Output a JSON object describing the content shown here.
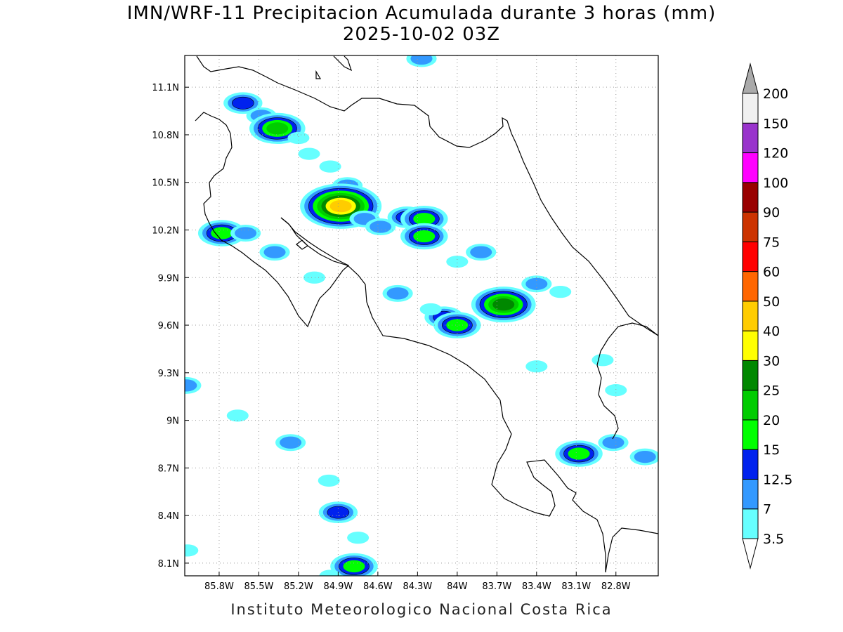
{
  "title": {
    "line1": "IMN/WRF-11 Precipitacion Acumulada durante 3 horas (mm)",
    "line2": "2025-10-02 03Z"
  },
  "footer": "Instituto Meteorologico Nacional Costa Rica",
  "map": {
    "lon_range": [
      -86.06,
      -82.48
    ],
    "lat_range": [
      8.02,
      11.3
    ],
    "x_ticks": [
      {
        "lon": -85.8,
        "label": "85.8W"
      },
      {
        "lon": -85.5,
        "label": "85.5W"
      },
      {
        "lon": -85.2,
        "label": "85.2W"
      },
      {
        "lon": -84.9,
        "label": "84.9W"
      },
      {
        "lon": -84.6,
        "label": "84.6W"
      },
      {
        "lon": -84.3,
        "label": "84.3W"
      },
      {
        "lon": -84.0,
        "label": "84W"
      },
      {
        "lon": -83.7,
        "label": "83.7W"
      },
      {
        "lon": -83.4,
        "label": "83.4W"
      },
      {
        "lon": -83.1,
        "label": "83.1W"
      },
      {
        "lon": -82.8,
        "label": "82.8W"
      }
    ],
    "y_ticks": [
      {
        "lat": 11.1,
        "label": "11.1N"
      },
      {
        "lat": 10.8,
        "label": "10.8N"
      },
      {
        "lat": 10.5,
        "label": "10.5N"
      },
      {
        "lat": 10.2,
        "label": "10.2N"
      },
      {
        "lat": 9.9,
        "label": "9.9N"
      },
      {
        "lat": 9.6,
        "label": "9.6N"
      },
      {
        "lat": 9.3,
        "label": "9.3N"
      },
      {
        "lat": 9.0,
        "label": "9N"
      },
      {
        "lat": 8.7,
        "label": "8.7N"
      },
      {
        "lat": 8.4,
        "label": "8.4N"
      },
      {
        "lat": 8.1,
        "label": "8.1N"
      }
    ],
    "grid": true
  },
  "colorbar": {
    "levels": [
      {
        "label": "3.5",
        "color": "#ffffff"
      },
      {
        "label": "7",
        "color": "#66ffff"
      },
      {
        "label": "12.5",
        "color": "#3399ff"
      },
      {
        "label": "15",
        "color": "#0022ee"
      },
      {
        "label": "20",
        "color": "#00ff00"
      },
      {
        "label": "25",
        "color": "#00cc00"
      },
      {
        "label": "30",
        "color": "#008800"
      },
      {
        "label": "40",
        "color": "#ffff00"
      },
      {
        "label": "50",
        "color": "#ffcc00"
      },
      {
        "label": "60",
        "color": "#ff6600"
      },
      {
        "label": "75",
        "color": "#ff0000"
      },
      {
        "label": "90",
        "color": "#cc3300"
      },
      {
        "label": "100",
        "color": "#990000"
      },
      {
        "label": "120",
        "color": "#ff00ff"
      },
      {
        "label": "150",
        "color": "#9933cc"
      },
      {
        "label": "200",
        "color": "#f0f0f0"
      }
    ],
    "band_colors": [
      "#66ffff",
      "#3399ff",
      "#0022ee",
      "#00ff00",
      "#00cc00",
      "#008800",
      "#ffff00",
      "#ffcc00",
      "#ff6600",
      "#ff0000",
      "#cc3300",
      "#990000",
      "#ff00ff",
      "#9933cc",
      "#f0f0f0"
    ],
    "upper_triangle_color": "#aaaaaa",
    "lower_triangle_color": "#ffffff"
  },
  "precip_cells": [
    {
      "lon": -85.62,
      "lat": 11.0,
      "level": 3
    },
    {
      "lon": -85.48,
      "lat": 10.92,
      "level": 2
    },
    {
      "lon": -85.36,
      "lat": 10.84,
      "level": 5
    },
    {
      "lon": -85.2,
      "lat": 10.78,
      "level": 1
    },
    {
      "lon": -85.12,
      "lat": 10.68,
      "level": 1
    },
    {
      "lon": -84.96,
      "lat": 10.6,
      "level": 1
    },
    {
      "lon": -84.83,
      "lat": 10.48,
      "level": 2
    },
    {
      "lon": -84.88,
      "lat": 10.35,
      "level": 8
    },
    {
      "lon": -84.7,
      "lat": 10.27,
      "level": 2
    },
    {
      "lon": -84.58,
      "lat": 10.22,
      "level": 2
    },
    {
      "lon": -84.38,
      "lat": 10.28,
      "level": 3
    },
    {
      "lon": -84.25,
      "lat": 10.27,
      "level": 4
    },
    {
      "lon": -84.25,
      "lat": 10.16,
      "level": 4
    },
    {
      "lon": -84.0,
      "lat": 10.0,
      "level": 1
    },
    {
      "lon": -83.82,
      "lat": 10.06,
      "level": 2
    },
    {
      "lon": -85.78,
      "lat": 10.18,
      "level": 4
    },
    {
      "lon": -85.6,
      "lat": 10.18,
      "level": 2
    },
    {
      "lon": -85.38,
      "lat": 10.06,
      "level": 2
    },
    {
      "lon": -85.08,
      "lat": 9.9,
      "level": 1
    },
    {
      "lon": -84.45,
      "lat": 9.8,
      "level": 2
    },
    {
      "lon": -84.1,
      "lat": 9.65,
      "level": 3
    },
    {
      "lon": -84.0,
      "lat": 9.6,
      "level": 4
    },
    {
      "lon": -83.65,
      "lat": 9.73,
      "level": 6
    },
    {
      "lon": -83.4,
      "lat": 9.86,
      "level": 2
    },
    {
      "lon": -83.22,
      "lat": 9.81,
      "level": 1
    },
    {
      "lon": -85.26,
      "lat": 8.86,
      "level": 2
    },
    {
      "lon": -84.97,
      "lat": 8.62,
      "level": 1
    },
    {
      "lon": -84.9,
      "lat": 8.42,
      "level": 3
    },
    {
      "lon": -84.75,
      "lat": 8.26,
      "level": 1
    },
    {
      "lon": -84.78,
      "lat": 8.08,
      "level": 4
    },
    {
      "lon": -83.08,
      "lat": 8.79,
      "level": 4
    },
    {
      "lon": -82.82,
      "lat": 8.86,
      "level": 2
    },
    {
      "lon": -82.58,
      "lat": 8.77,
      "level": 2
    },
    {
      "lon": -82.8,
      "lat": 9.19,
      "level": 1
    },
    {
      "lon": -83.4,
      "lat": 9.34,
      "level": 1
    },
    {
      "lon": -84.27,
      "lat": 11.28,
      "level": 2
    },
    {
      "lon": -85.66,
      "lat": 9.03,
      "level": 1
    },
    {
      "lon": -86.05,
      "lat": 9.22,
      "level": 2
    },
    {
      "lon": -86.04,
      "lat": 8.18,
      "level": 1
    },
    {
      "lon": -84.96,
      "lat": 8.02,
      "level": 1
    },
    {
      "lon": -82.9,
      "lat": 9.38,
      "level": 1
    },
    {
      "lon": -84.2,
      "lat": 9.7,
      "level": 1
    }
  ]
}
